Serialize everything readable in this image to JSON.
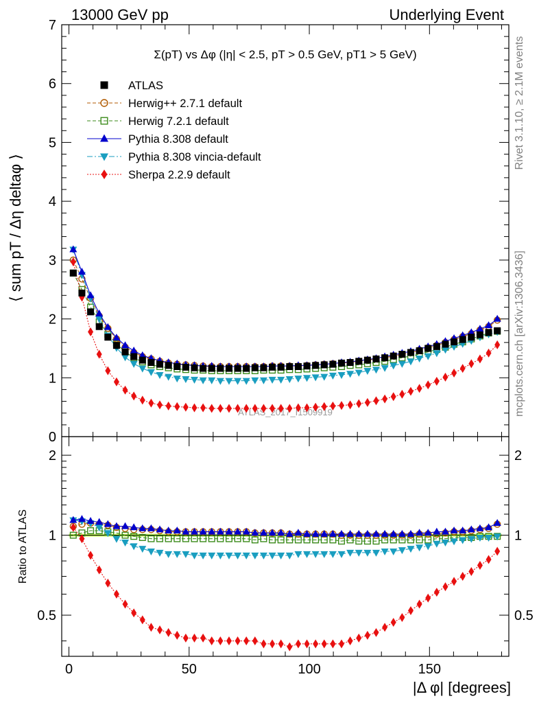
{
  "header": {
    "left": "13000 GeV pp",
    "right": "Underlying Event"
  },
  "side": {
    "rivet": "Rivet 3.1.10, ≥ 2.1M events",
    "mcplots": "mcplots.cern.ch [arXiv:1306.3436]"
  },
  "chart_data": [
    {
      "type": "scatter",
      "title": "Σ(pT) vs Δφ (|η| < 2.5, pT > 0.5 GeV, pT1 > 5 GeV)",
      "ylabel": "⟨ sum pT / Δη deltaφ ⟩",
      "xlabel": "",
      "watermark": "ATLAS_2017_I1509919",
      "xlim": [
        -3,
        183
      ],
      "ylim": [
        0,
        7
      ],
      "yticks": [
        0,
        1,
        2,
        3,
        4,
        5,
        6,
        7
      ],
      "legend_position": "top-left",
      "x": [
        1.8,
        5.4,
        9,
        12.6,
        16.2,
        19.8,
        23.4,
        27,
        30.6,
        34.2,
        37.8,
        41.4,
        45,
        48.6,
        52.2,
        55.8,
        59.4,
        63,
        66.6,
        70.2,
        73.8,
        77.4,
        81,
        84.6,
        88.2,
        91.8,
        95.4,
        99,
        102.6,
        106.2,
        109.8,
        113.4,
        117,
        120.6,
        124.2,
        127.8,
        131.4,
        135,
        138.6,
        142.2,
        145.8,
        149.4,
        153,
        156.6,
        160.2,
        163.8,
        167.4,
        171,
        174.6,
        178.2
      ],
      "series": [
        {
          "name": "ATLAS",
          "color": "#000000",
          "marker": "square-filled",
          "line": "none",
          "values": [
            2.78,
            2.44,
            2.12,
            1.87,
            1.69,
            1.55,
            1.44,
            1.36,
            1.3,
            1.26,
            1.23,
            1.21,
            1.19,
            1.18,
            1.17,
            1.16,
            1.16,
            1.16,
            1.16,
            1.16,
            1.16,
            1.17,
            1.17,
            1.18,
            1.18,
            1.19,
            1.19,
            1.2,
            1.21,
            1.22,
            1.23,
            1.25,
            1.26,
            1.28,
            1.3,
            1.32,
            1.34,
            1.37,
            1.4,
            1.43,
            1.46,
            1.5,
            1.53,
            1.57,
            1.61,
            1.65,
            1.69,
            1.73,
            1.77,
            1.8
          ]
        },
        {
          "name": "Herwig++ 2.7.1 default",
          "color": "#b05a00",
          "marker": "circle-open",
          "line": "dashed",
          "values": [
            3.0,
            2.68,
            2.35,
            2.05,
            1.84,
            1.66,
            1.52,
            1.43,
            1.36,
            1.32,
            1.28,
            1.25,
            1.23,
            1.22,
            1.21,
            1.2,
            1.19,
            1.19,
            1.19,
            1.19,
            1.19,
            1.19,
            1.19,
            1.2,
            1.2,
            1.2,
            1.2,
            1.21,
            1.22,
            1.23,
            1.24,
            1.25,
            1.26,
            1.28,
            1.3,
            1.32,
            1.34,
            1.37,
            1.4,
            1.43,
            1.47,
            1.51,
            1.55,
            1.6,
            1.65,
            1.7,
            1.75,
            1.81,
            1.87,
            1.98
          ]
        },
        {
          "name": "Herwig 7.2.1 default",
          "color": "#3a8a1a",
          "marker": "square-open",
          "line": "dashed",
          "values": [
            2.78,
            2.5,
            2.2,
            1.95,
            1.74,
            1.58,
            1.44,
            1.34,
            1.27,
            1.22,
            1.19,
            1.17,
            1.15,
            1.14,
            1.13,
            1.13,
            1.12,
            1.12,
            1.12,
            1.12,
            1.12,
            1.12,
            1.13,
            1.13,
            1.13,
            1.14,
            1.14,
            1.15,
            1.16,
            1.17,
            1.18,
            1.19,
            1.21,
            1.22,
            1.24,
            1.26,
            1.28,
            1.31,
            1.34,
            1.37,
            1.4,
            1.44,
            1.48,
            1.52,
            1.57,
            1.61,
            1.66,
            1.71,
            1.76,
            1.79
          ]
        },
        {
          "name": "Pythia 8.308 default",
          "color": "#0000cc",
          "marker": "triangle-up-filled",
          "line": "solid",
          "values": [
            3.18,
            2.8,
            2.4,
            2.09,
            1.86,
            1.68,
            1.55,
            1.46,
            1.38,
            1.33,
            1.29,
            1.26,
            1.24,
            1.22,
            1.21,
            1.2,
            1.2,
            1.19,
            1.19,
            1.19,
            1.19,
            1.19,
            1.19,
            1.2,
            1.2,
            1.2,
            1.21,
            1.21,
            1.22,
            1.23,
            1.24,
            1.26,
            1.27,
            1.29,
            1.31,
            1.33,
            1.36,
            1.39,
            1.42,
            1.45,
            1.49,
            1.53,
            1.57,
            1.62,
            1.67,
            1.72,
            1.77,
            1.83,
            1.89,
            2.0
          ]
        },
        {
          "name": "Pythia 8.308 vincia-default",
          "color": "#1a9ec0",
          "marker": "triangle-down-filled",
          "line": "dashdot",
          "values": [
            3.18,
            2.75,
            2.35,
            2.0,
            1.72,
            1.51,
            1.35,
            1.24,
            1.16,
            1.1,
            1.05,
            1.02,
            0.99,
            0.98,
            0.97,
            0.96,
            0.96,
            0.95,
            0.95,
            0.95,
            0.95,
            0.96,
            0.96,
            0.97,
            0.97,
            0.98,
            0.99,
            1.0,
            1.01,
            1.02,
            1.04,
            1.05,
            1.07,
            1.09,
            1.12,
            1.14,
            1.17,
            1.21,
            1.24,
            1.28,
            1.33,
            1.37,
            1.42,
            1.48,
            1.53,
            1.58,
            1.63,
            1.69,
            1.74,
            1.78
          ]
        },
        {
          "name": "Sherpa 2.2.9 default",
          "color": "#e81010",
          "marker": "diamond-filled",
          "line": "dotted",
          "values": [
            2.97,
            2.37,
            1.78,
            1.4,
            1.12,
            0.93,
            0.79,
            0.69,
            0.62,
            0.57,
            0.54,
            0.52,
            0.51,
            0.5,
            0.49,
            0.49,
            0.48,
            0.48,
            0.48,
            0.48,
            0.48,
            0.48,
            0.48,
            0.48,
            0.48,
            0.48,
            0.49,
            0.49,
            0.5,
            0.51,
            0.52,
            0.53,
            0.54,
            0.56,
            0.58,
            0.61,
            0.64,
            0.68,
            0.72,
            0.77,
            0.82,
            0.88,
            0.94,
            1.01,
            1.08,
            1.16,
            1.24,
            1.32,
            1.42,
            1.56
          ]
        }
      ]
    },
    {
      "type": "scatter",
      "ylabel": "Ratio to ATLAS",
      "xlabel": "|Δ φ| [degrees]",
      "xlim": [
        -3,
        183
      ],
      "ylim": [
        0.35,
        2.35
      ],
      "log_y": true,
      "yticks": [
        0.5,
        1,
        2
      ],
      "xticks": [
        0,
        50,
        100,
        150
      ],
      "x_reference": "same as upper panel",
      "series": [
        {
          "name": "ATLAS",
          "color": "#000000",
          "band": "#c8ff60",
          "values": [
            1.0,
            1.0,
            1.0,
            1.0,
            1.0,
            1.0,
            1.0,
            1.0,
            1.0,
            1.0,
            1.0,
            1.0,
            1.0,
            1.0,
            1.0,
            1.0,
            1.0,
            1.0,
            1.0,
            1.0,
            1.0,
            1.0,
            1.0,
            1.0,
            1.0,
            1.0,
            1.0,
            1.0,
            1.0,
            1.0,
            1.0,
            1.0,
            1.0,
            1.0,
            1.0,
            1.0,
            1.0,
            1.0,
            1.0,
            1.0,
            1.0,
            1.0,
            1.0,
            1.0,
            1.0,
            1.0,
            1.0,
            1.0,
            1.0,
            1.0
          ]
        },
        {
          "name": "Herwig++ 2.7.1 default",
          "color": "#b05a00",
          "values": [
            1.08,
            1.1,
            1.11,
            1.1,
            1.09,
            1.07,
            1.06,
            1.05,
            1.05,
            1.05,
            1.04,
            1.03,
            1.03,
            1.03,
            1.03,
            1.03,
            1.03,
            1.03,
            1.03,
            1.03,
            1.03,
            1.02,
            1.02,
            1.02,
            1.02,
            1.01,
            1.01,
            1.01,
            1.01,
            1.01,
            1.01,
            1.0,
            1.0,
            1.0,
            1.0,
            1.0,
            1.0,
            1.0,
            1.0,
            1.0,
            1.01,
            1.01,
            1.01,
            1.02,
            1.03,
            1.03,
            1.04,
            1.05,
            1.06,
            1.1
          ]
        },
        {
          "name": "Herwig 7.2.1 default",
          "color": "#3a8a1a",
          "values": [
            1.0,
            1.02,
            1.04,
            1.04,
            1.03,
            1.02,
            1.0,
            0.99,
            0.98,
            0.97,
            0.97,
            0.97,
            0.97,
            0.97,
            0.97,
            0.97,
            0.97,
            0.97,
            0.97,
            0.97,
            0.97,
            0.96,
            0.97,
            0.96,
            0.96,
            0.96,
            0.96,
            0.96,
            0.96,
            0.96,
            0.96,
            0.95,
            0.96,
            0.95,
            0.95,
            0.95,
            0.96,
            0.96,
            0.96,
            0.96,
            0.96,
            0.96,
            0.97,
            0.97,
            0.98,
            0.98,
            0.98,
            0.99,
            0.99,
            0.99
          ]
        },
        {
          "name": "Pythia 8.308 default",
          "color": "#0000cc",
          "values": [
            1.14,
            1.15,
            1.13,
            1.12,
            1.1,
            1.08,
            1.08,
            1.07,
            1.06,
            1.06,
            1.05,
            1.04,
            1.04,
            1.03,
            1.03,
            1.03,
            1.03,
            1.03,
            1.03,
            1.03,
            1.03,
            1.02,
            1.02,
            1.02,
            1.02,
            1.01,
            1.02,
            1.01,
            1.01,
            1.01,
            1.01,
            1.01,
            1.01,
            1.01,
            1.01,
            1.01,
            1.01,
            1.01,
            1.01,
            1.01,
            1.02,
            1.02,
            1.03,
            1.03,
            1.04,
            1.04,
            1.05,
            1.06,
            1.07,
            1.11
          ]
        },
        {
          "name": "Pythia 8.308 vincia-default",
          "color": "#1a9ec0",
          "values": [
            1.14,
            1.13,
            1.11,
            1.07,
            1.02,
            0.97,
            0.94,
            0.91,
            0.89,
            0.87,
            0.86,
            0.85,
            0.85,
            0.85,
            0.84,
            0.84,
            0.84,
            0.84,
            0.84,
            0.84,
            0.84,
            0.84,
            0.84,
            0.84,
            0.84,
            0.84,
            0.85,
            0.85,
            0.85,
            0.85,
            0.85,
            0.85,
            0.86,
            0.86,
            0.86,
            0.86,
            0.87,
            0.87,
            0.88,
            0.89,
            0.9,
            0.91,
            0.93,
            0.94,
            0.95,
            0.96,
            0.97,
            0.98,
            0.98,
            0.99
          ]
        },
        {
          "name": "Sherpa 2.2.9 default",
          "color": "#e81010",
          "values": [
            1.07,
            0.97,
            0.84,
            0.74,
            0.66,
            0.6,
            0.55,
            0.51,
            0.48,
            0.45,
            0.44,
            0.43,
            0.42,
            0.41,
            0.41,
            0.41,
            0.4,
            0.4,
            0.4,
            0.4,
            0.4,
            0.4,
            0.39,
            0.39,
            0.39,
            0.38,
            0.39,
            0.39,
            0.39,
            0.39,
            0.39,
            0.39,
            0.4,
            0.41,
            0.42,
            0.43,
            0.45,
            0.47,
            0.49,
            0.52,
            0.55,
            0.58,
            0.61,
            0.64,
            0.67,
            0.7,
            0.73,
            0.77,
            0.81,
            0.87
          ]
        }
      ]
    }
  ]
}
